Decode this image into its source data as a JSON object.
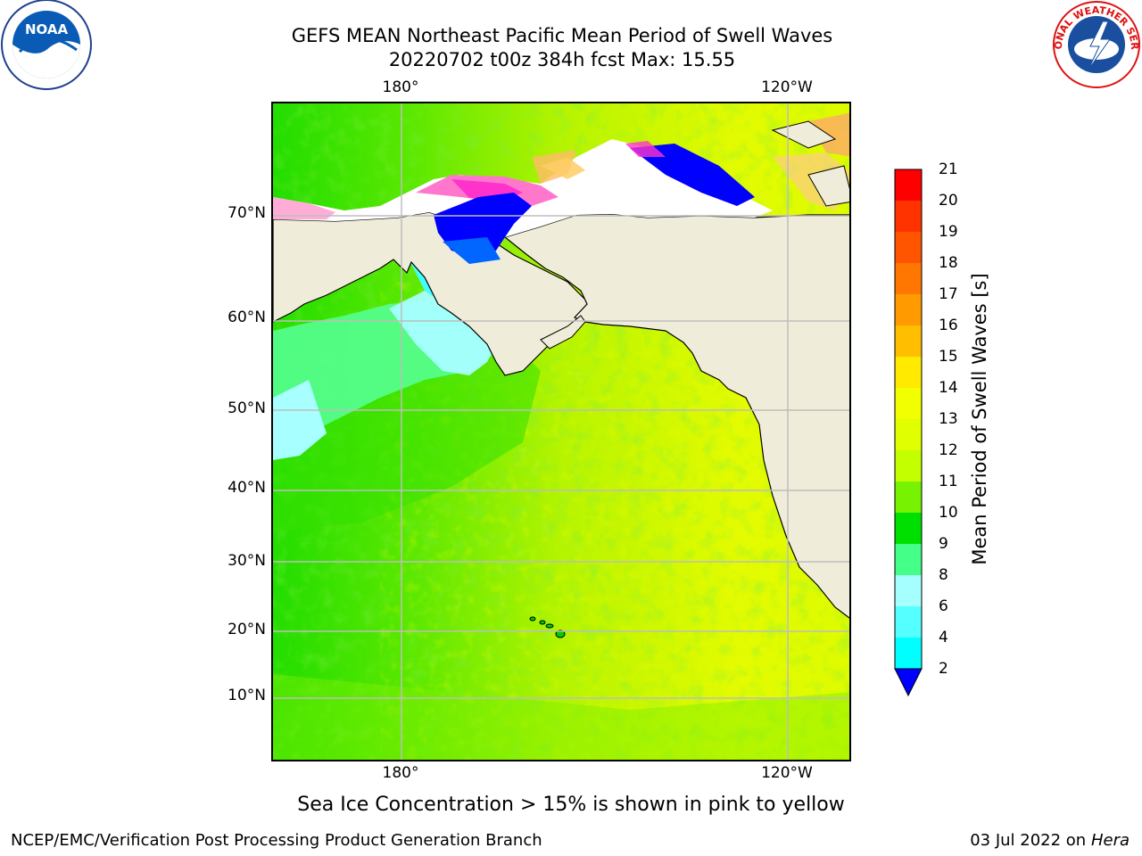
{
  "title": {
    "line1": "GEFS MEAN Northeast Pacific Mean Period of Swell Waves",
    "line2": "20220702 t00z 384h fcst   Max: 15.55"
  },
  "axes": {
    "lon_labels": [
      "180°",
      "120°W"
    ],
    "lat_labels": [
      "70°N",
      "60°N",
      "50°N",
      "40°N",
      "30°N",
      "20°N",
      "10°N"
    ]
  },
  "colorbar": {
    "label": "Mean Period of Swell Waves [s]",
    "ticks": [
      "21",
      "20",
      "19",
      "18",
      "17",
      "16",
      "15",
      "14",
      "13",
      "12",
      "11",
      "10",
      "9",
      "8",
      "6",
      "4",
      "2"
    ],
    "colors": [
      "#ff0000",
      "#ff3300",
      "#ff5500",
      "#ff7700",
      "#ff9a00",
      "#ffbf00",
      "#ffea00",
      "#f2ff00",
      "#e0ff00",
      "#c4ff00",
      "#77f200",
      "#00e000",
      "#44ff88",
      "#a6ffff",
      "#55ffff",
      "#00ffff",
      "#00ccff",
      "#0066ff",
      "#0000ff"
    ],
    "extend": "min"
  },
  "caption": "Sea Ice Concentration > 15% is shown in pink to yellow",
  "footer": {
    "left": "NCEP/EMC/Verification Post Processing Product Generation Branch",
    "date": "03 Jul 2022 on ",
    "machine": "Hera"
  },
  "logos": {
    "left": "NOAA",
    "right": "NATIONAL WEATHER SERVICE"
  }
}
